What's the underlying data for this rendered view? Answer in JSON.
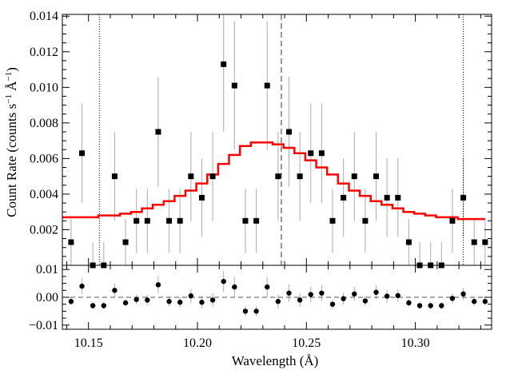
{
  "chart_data": [
    {
      "panel": "spectrum",
      "type": "scatter",
      "title": "",
      "xlabel": "Wavelength (Å)",
      "ylabel": "Count Rate (counts s⁻¹ Å⁻¹)",
      "ylabel_parts": {
        "main": "Count Rate (counts s",
        "exp1": "−1",
        "mid": " Å",
        "exp2": "−1",
        "end": ")"
      },
      "xlim": [
        10.138,
        10.335
      ],
      "ylim": [
        0,
        0.0141
      ],
      "xticks": [
        10.15,
        10.2,
        10.25,
        10.3
      ],
      "xtick_labels": [
        "10.15",
        "10.20",
        "10.25",
        "10.30"
      ],
      "yticks": [
        0.002,
        0.004,
        0.006,
        0.008,
        0.01,
        0.012,
        0.014
      ],
      "ytick_labels": [
        "0.002",
        "0.004",
        "0.006",
        "0.008",
        "0.010",
        "0.012",
        "0.014"
      ],
      "grid": false,
      "vlines_dotted": [
        10.155,
        10.322
      ],
      "vline_dashed": 10.2385,
      "data_color": "#000000",
      "error_color": "#aaaaaa",
      "model_color": "#ff0000",
      "data": {
        "x": [
          10.142,
          10.147,
          10.152,
          10.157,
          10.162,
          10.167,
          10.172,
          10.177,
          10.182,
          10.187,
          10.192,
          10.197,
          10.202,
          10.207,
          10.212,
          10.217,
          10.222,
          10.227,
          10.232,
          10.237,
          10.242,
          10.247,
          10.252,
          10.257,
          10.262,
          10.267,
          10.272,
          10.277,
          10.282,
          10.287,
          10.292,
          10.297,
          10.302,
          10.307,
          10.312,
          10.317,
          10.322,
          10.327,
          10.332
        ],
        "y": [
          0.0013,
          0.0063,
          0.0,
          0.0,
          0.005,
          0.0013,
          0.0025,
          0.0025,
          0.0075,
          0.0025,
          0.0025,
          0.005,
          0.0038,
          0.005,
          0.0113,
          0.0101,
          0.0025,
          0.0025,
          0.0101,
          0.005,
          0.0075,
          0.005,
          0.0063,
          0.0063,
          0.0025,
          0.0038,
          0.005,
          0.0025,
          0.005,
          0.0038,
          0.0038,
          0.0013,
          0.0,
          0.0,
          0.0,
          0.0025,
          0.0038,
          0.0013,
          0.0013
        ],
        "err": [
          0.0013,
          0.0028,
          0.0013,
          0.0013,
          0.0025,
          0.0013,
          0.0018,
          0.0018,
          0.0031,
          0.0018,
          0.0018,
          0.0025,
          0.0022,
          0.0025,
          0.0038,
          0.0036,
          0.0018,
          0.0018,
          0.0036,
          0.0025,
          0.0031,
          0.0025,
          0.0028,
          0.0028,
          0.0018,
          0.0022,
          0.0025,
          0.0018,
          0.0025,
          0.0022,
          0.0022,
          0.0013,
          0.0013,
          0.0013,
          0.0013,
          0.0018,
          0.0022,
          0.0013,
          0.0013
        ]
      },
      "model": {
        "x": [
          10.138,
          10.1445,
          10.1495,
          10.1545,
          10.1595,
          10.1645,
          10.1695,
          10.1745,
          10.1795,
          10.1845,
          10.1895,
          10.1945,
          10.1995,
          10.2045,
          10.2095,
          10.2145,
          10.2195,
          10.2245,
          10.2295,
          10.2345,
          10.2395,
          10.2445,
          10.2495,
          10.2545,
          10.2595,
          10.2645,
          10.2695,
          10.2745,
          10.2795,
          10.2845,
          10.2895,
          10.2945,
          10.2995,
          10.3045,
          10.3095,
          10.3145,
          10.3195,
          10.3245,
          10.3295
        ],
        "y": [
          0.0027,
          0.0027,
          0.0027,
          0.0028,
          0.0028,
          0.0029,
          0.003,
          0.0032,
          0.0034,
          0.0036,
          0.0039,
          0.0042,
          0.0046,
          0.0051,
          0.0057,
          0.0062,
          0.0067,
          0.0069,
          0.0069,
          0.0068,
          0.0066,
          0.0063,
          0.0059,
          0.0055,
          0.0051,
          0.0046,
          0.0042,
          0.0039,
          0.0036,
          0.0034,
          0.0032,
          0.003,
          0.0029,
          0.0028,
          0.0027,
          0.0027,
          0.0026,
          0.0026,
          0.0026
        ]
      }
    },
    {
      "panel": "residuals",
      "type": "scatter",
      "title": "",
      "xlabel": "Wavelength (Å)",
      "ylabel": "",
      "xlim": [
        10.138,
        10.335
      ],
      "ylim": [
        -0.0115,
        0.0115
      ],
      "yticks": [
        -0.01,
        0.0,
        0.01
      ],
      "ytick_labels": [
        "−0.01",
        "0.00",
        "0.01"
      ],
      "zero_line": "dashed",
      "data": {
        "x": [
          10.142,
          10.147,
          10.152,
          10.157,
          10.162,
          10.167,
          10.172,
          10.177,
          10.182,
          10.187,
          10.192,
          10.197,
          10.202,
          10.207,
          10.212,
          10.217,
          10.222,
          10.227,
          10.232,
          10.237,
          10.242,
          10.247,
          10.252,
          10.257,
          10.262,
          10.267,
          10.272,
          10.277,
          10.282,
          10.287,
          10.292,
          10.297,
          10.302,
          10.307,
          10.312,
          10.317,
          10.322,
          10.327,
          10.332
        ],
        "y": [
          -0.0015,
          0.004,
          -0.003,
          -0.003,
          0.0025,
          -0.002,
          -0.0008,
          -0.001,
          0.0045,
          -0.0015,
          -0.0018,
          0.0005,
          -0.0018,
          -0.001,
          0.0057,
          0.0037,
          -0.005,
          -0.005,
          0.0037,
          -0.0015,
          0.0015,
          -0.001,
          0.001,
          0.0015,
          -0.0025,
          -0.0005,
          0.0012,
          -0.0013,
          0.0018,
          0.0004,
          0.0006,
          -0.002,
          -0.003,
          -0.003,
          -0.003,
          -0.0004,
          0.0012,
          -0.0015,
          -0.0015
        ],
        "err": [
          0.0013,
          0.0028,
          0.0013,
          0.0013,
          0.0025,
          0.0013,
          0.0018,
          0.0018,
          0.0031,
          0.0018,
          0.0018,
          0.0025,
          0.0022,
          0.0025,
          0.0038,
          0.0036,
          0.0018,
          0.0018,
          0.0036,
          0.0025,
          0.0031,
          0.0025,
          0.0028,
          0.0028,
          0.0018,
          0.0022,
          0.0025,
          0.0018,
          0.0025,
          0.0022,
          0.0022,
          0.0013,
          0.0013,
          0.0013,
          0.0013,
          0.0018,
          0.0022,
          0.0013,
          0.0013
        ]
      }
    }
  ]
}
